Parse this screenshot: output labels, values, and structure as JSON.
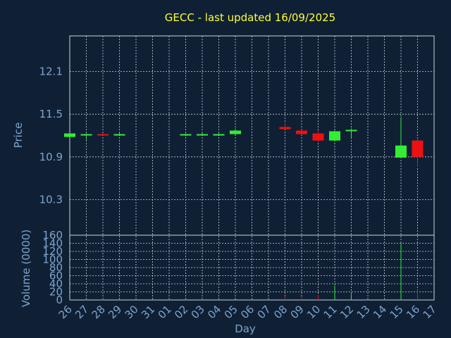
{
  "chart_data": {
    "type": "candlestick",
    "title": "GECC - last updated 16/09/2025",
    "xlabel": "Day",
    "price_panel": {
      "ylabel": "Price",
      "yticks": [
        "10.3",
        "10.9",
        "11.5",
        "12.1"
      ],
      "ylim": [
        9.8,
        12.6
      ]
    },
    "volume_panel": {
      "ylabel": "Volume (0000)",
      "yticks": [
        "0",
        "20",
        "40",
        "60",
        "80",
        "100",
        "120",
        "140",
        "160"
      ],
      "ylim": [
        0,
        160
      ]
    },
    "x_ticks": [
      "26",
      "27",
      "28",
      "29",
      "30",
      "31",
      "01",
      "02",
      "03",
      "04",
      "05",
      "06",
      "07",
      "08",
      "09",
      "10",
      "11",
      "12",
      "13",
      "14",
      "15",
      "16",
      "17"
    ],
    "candles": [
      {
        "day": "26",
        "open": 11.18,
        "high": 11.24,
        "low": 11.17,
        "close": 11.23,
        "volume": 1
      },
      {
        "day": "27",
        "open": 11.21,
        "high": 11.23,
        "low": 11.14,
        "close": 11.22,
        "volume": 1
      },
      {
        "day": "28",
        "open": 11.22,
        "high": 11.23,
        "low": 11.2,
        "close": 11.21,
        "volume": 1
      },
      {
        "day": "29",
        "open": 11.21,
        "high": 11.24,
        "low": 11.2,
        "close": 11.22,
        "volume": 1
      },
      {
        "day": "02",
        "open": 11.21,
        "high": 11.23,
        "low": 11.19,
        "close": 11.22,
        "volume": 1
      },
      {
        "day": "03",
        "open": 11.21,
        "high": 11.24,
        "low": 11.2,
        "close": 11.22,
        "volume": 1
      },
      {
        "day": "04",
        "open": 11.21,
        "high": 11.23,
        "low": 11.2,
        "close": 11.22,
        "volume": 1
      },
      {
        "day": "05",
        "open": 11.22,
        "high": 11.3,
        "low": 11.21,
        "close": 11.27,
        "volume": 2
      },
      {
        "day": "08",
        "open": 11.32,
        "high": 11.37,
        "low": 11.29,
        "close": 11.29,
        "volume": 10
      },
      {
        "day": "09",
        "open": 11.27,
        "high": 11.28,
        "low": 11.21,
        "close": 11.22,
        "volume": 8
      },
      {
        "day": "10",
        "open": 11.23,
        "high": 11.27,
        "low": 11.12,
        "close": 11.13,
        "volume": 12
      },
      {
        "day": "11",
        "open": 11.13,
        "high": 11.27,
        "low": 11.12,
        "close": 11.26,
        "volume": 35
      },
      {
        "day": "12",
        "open": 11.26,
        "high": 11.3,
        "low": 11.16,
        "close": 11.28,
        "volume": 15
      },
      {
        "day": "15",
        "open": 10.89,
        "high": 11.46,
        "low": 10.88,
        "close": 11.06,
        "volume": 140
      },
      {
        "day": "16",
        "open": 11.13,
        "high": 11.16,
        "low": 10.76,
        "close": 10.9,
        "volume": 25
      }
    ],
    "colors": {
      "background": "#0f2035",
      "up": "#33ee33",
      "down": "#ee1111",
      "title": "#ffff33",
      "axis_text": "#7fa4cc",
      "grid": "#c8d2dc"
    },
    "grid": true
  }
}
